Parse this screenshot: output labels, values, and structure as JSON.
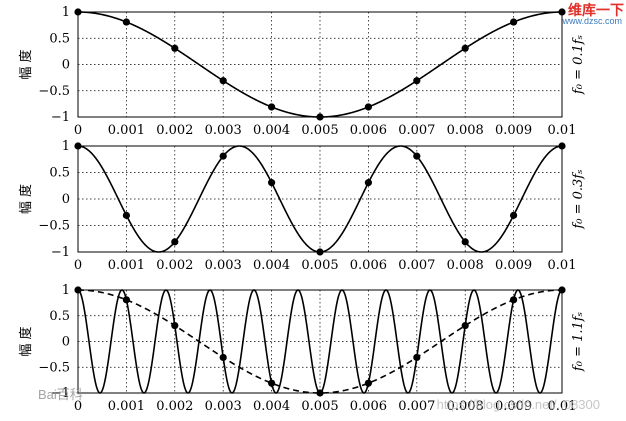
{
  "watermarks": {
    "site": "维库一下",
    "url": "www.dzsc.com",
    "baidu": "Bai百科",
    "blog": "https://blog.csdn.net/..08300"
  },
  "chart_data": [
    {
      "type": "line",
      "ylabel": "幅 度",
      "panel_label": "f₀ = 0.1fₛ",
      "x_ticks": [
        "0",
        "0.001",
        "0.002",
        "0.003",
        "0.004",
        "0.005",
        "0.006",
        "0.007",
        "0.008",
        "0.009",
        "0.01"
      ],
      "y_ticks": [
        "1",
        "0.5",
        "0",
        "−0.5",
        "−1"
      ],
      "xlim": [
        0,
        0.01
      ],
      "ylim": [
        -1,
        1
      ],
      "grid": true,
      "continuous": {
        "frequency_hz": 100,
        "style": "solid"
      },
      "samples": {
        "x": [
          0,
          0.001,
          0.002,
          0.003,
          0.004,
          0.005,
          0.006,
          0.007,
          0.008,
          0.009,
          0.01
        ],
        "y": [
          1,
          0.809,
          0.309,
          -0.309,
          -0.809,
          -1,
          -0.809,
          -0.309,
          0.309,
          0.809,
          1
        ]
      }
    },
    {
      "type": "line",
      "ylabel": "幅 度",
      "panel_label": "f₀ = 0.3fₛ",
      "x_ticks": [
        "0",
        "0.001",
        "0.002",
        "0.003",
        "0.004",
        "0.005",
        "0.006",
        "0.007",
        "0.008",
        "0.009",
        "0.01"
      ],
      "y_ticks": [
        "1",
        "0.5",
        "0",
        "−0.5",
        "−1"
      ],
      "xlim": [
        0,
        0.01
      ],
      "ylim": [
        -1,
        1
      ],
      "grid": true,
      "continuous": {
        "frequency_hz": 300,
        "style": "solid"
      },
      "samples": {
        "x": [
          0,
          0.001,
          0.002,
          0.003,
          0.004,
          0.005,
          0.006,
          0.007,
          0.008,
          0.009,
          0.01
        ],
        "y": [
          1,
          -0.309,
          -0.809,
          0.809,
          0.309,
          -1,
          0.309,
          0.809,
          -0.809,
          -0.309,
          1
        ]
      }
    },
    {
      "type": "line",
      "ylabel": "幅 度",
      "panel_label": "f₀ = 1.1fₛ",
      "x_ticks": [
        "0",
        "0.001",
        "0.002",
        "0.003",
        "0.004",
        "0.005",
        "0.006",
        "0.007",
        "0.008",
        "0.009",
        "0.01"
      ],
      "y_ticks": [
        "1",
        "0.5",
        "0",
        "−0.5",
        "−1"
      ],
      "xlim": [
        0,
        0.01
      ],
      "ylim": [
        -1,
        1
      ],
      "grid": true,
      "continuous": {
        "frequency_hz": 1100,
        "style": "solid"
      },
      "alias": {
        "frequency_hz": 100,
        "style": "dashed"
      },
      "samples": {
        "x": [
          0,
          0.001,
          0.002,
          0.003,
          0.004,
          0.005,
          0.006,
          0.007,
          0.008,
          0.009,
          0.01
        ],
        "y": [
          1,
          0.809,
          0.309,
          -0.309,
          -0.809,
          -1,
          -0.809,
          -0.309,
          0.309,
          0.809,
          1
        ]
      }
    }
  ]
}
